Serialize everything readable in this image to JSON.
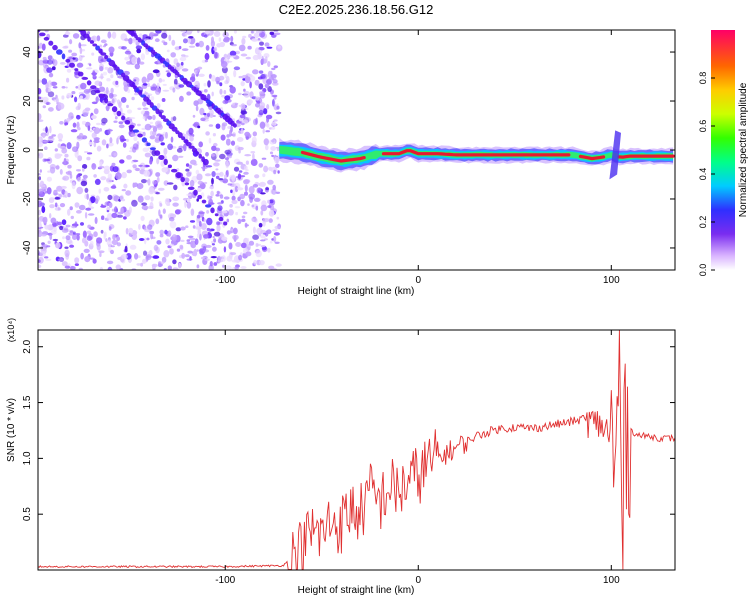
{
  "title": "C2E2.2025.236.18.56.G12",
  "chart_data": [
    {
      "type": "heatmap",
      "title": "C2E2.2025.236.18.56.G12",
      "xlabel": "Height of straight line (km)",
      "ylabel": "Frequency (Hz)",
      "xlim": [
        -197,
        133
      ],
      "ylim": [
        -49,
        49
      ],
      "xticks": [
        -100,
        0,
        100
      ],
      "xtick_labels": [
        "-100",
        "0",
        "100"
      ],
      "yticks": [
        -40,
        -20,
        0,
        20,
        40
      ],
      "ytick_labels": [
        "-40",
        "-20",
        "0",
        "20",
        "40"
      ],
      "noise_region_km": [
        -197,
        -72
      ],
      "signal_trace": {
        "x": [
          -72,
          -60,
          -50,
          -40,
          -30,
          -20,
          -10,
          -5,
          0,
          10,
          20,
          40,
          60,
          80,
          90,
          95,
          100,
          105,
          110,
          120,
          133
        ],
        "y": [
          0,
          -1,
          -3,
          -4.5,
          -3.5,
          -1.5,
          -1.5,
          0,
          -1.5,
          -1.5,
          -2,
          -2,
          -2,
          -2,
          -3.5,
          -3,
          -2,
          -3,
          -2.5,
          -2.5,
          -2.5
        ]
      },
      "diagonal_streaks": [
        {
          "x": [
            -197,
            -100
          ],
          "y": [
            49,
            -30
          ]
        },
        {
          "x": [
            -175,
            -110
          ],
          "y": [
            49,
            -5
          ]
        },
        {
          "x": [
            -150,
            -95
          ],
          "y": [
            49,
            10
          ]
        }
      ],
      "colorbar": {
        "label": "Normalized spectral amplitude",
        "range": [
          0,
          1
        ],
        "ticks": [
          0.0,
          0.2,
          0.4,
          0.6,
          0.8
        ],
        "tick_labels": [
          "0.0",
          "0.2",
          "0.4",
          "0.6",
          "0.8"
        ]
      }
    },
    {
      "type": "line",
      "xlabel": "Height of straight line (km)",
      "ylabel": "SNR (10 * v/v)",
      "y_multiplier": "(x10⁴)",
      "xlim": [
        -197,
        133
      ],
      "ylim": [
        0,
        2.15
      ],
      "xticks": [
        -100,
        0,
        100
      ],
      "xtick_labels": [
        "-100",
        "0",
        "100"
      ],
      "yticks": [
        0.5,
        1.0,
        1.5,
        2.0
      ],
      "ytick_labels": [
        "0.5",
        "1.0",
        "1.5",
        "2.0"
      ],
      "series": [
        {
          "name": "SNR",
          "color": "#e03030",
          "x": [
            -197,
            -150,
            -100,
            -70,
            -60,
            -55,
            -50,
            -45,
            -40,
            -35,
            -30,
            -25,
            -20,
            -15,
            -10,
            -5,
            0,
            5,
            10,
            20,
            30,
            40,
            50,
            60,
            70,
            80,
            85,
            90,
            95,
            100,
            102,
            104,
            106,
            108,
            110,
            115,
            120,
            125,
            133
          ],
          "y": [
            0.03,
            0.03,
            0.03,
            0.04,
            0.2,
            0.35,
            0.3,
            0.45,
            0.4,
            0.55,
            0.5,
            0.7,
            0.6,
            0.75,
            0.7,
            0.8,
            0.85,
            0.95,
            1.0,
            1.1,
            1.2,
            1.26,
            1.28,
            1.27,
            1.3,
            1.33,
            1.35,
            1.32,
            1.3,
            1.2,
            0.6,
            1.9,
            0.4,
            1.5,
            1.25,
            1.2,
            1.2,
            1.18,
            1.18
          ]
        }
      ]
    }
  ]
}
